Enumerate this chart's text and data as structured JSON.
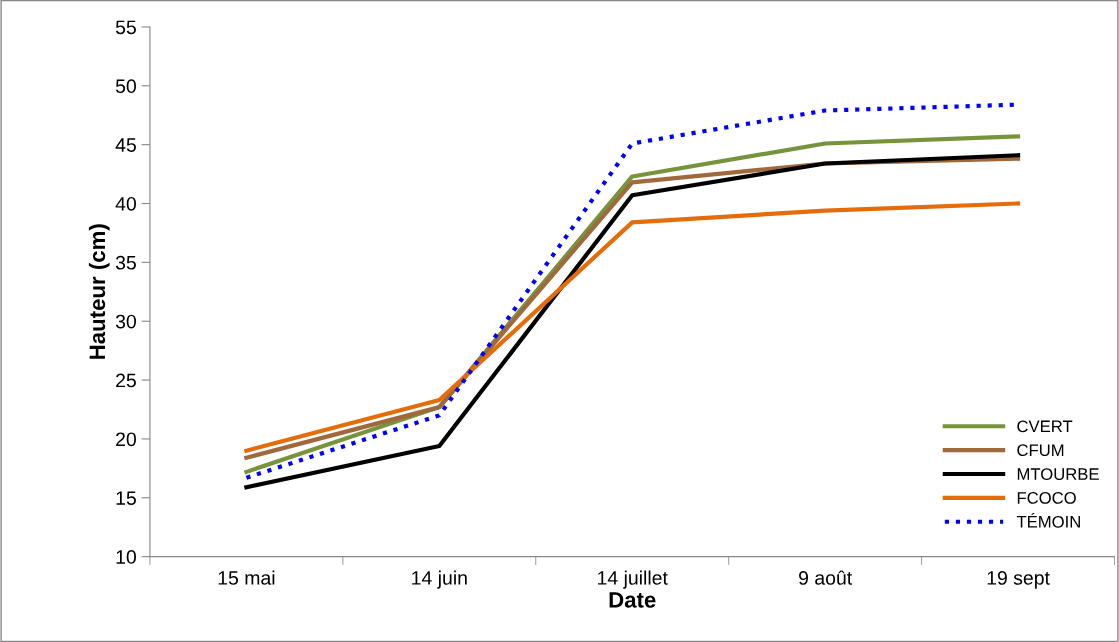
{
  "chart_data": {
    "type": "line",
    "xlabel": "Date",
    "ylabel": "Hauteur (cm)",
    "categories": [
      "15 mai",
      "14 juin",
      "14 juillet",
      "9 août",
      "19 sept"
    ],
    "series": [
      {
        "name": "CVERT",
        "color": "#77933c",
        "values": [
          17.2,
          22.7,
          42.3,
          45.1,
          45.7
        ]
      },
      {
        "name": "CFUM",
        "color": "#a0693c",
        "values": [
          18.4,
          22.7,
          41.8,
          43.4,
          43.8
        ]
      },
      {
        "name": "MTOURBE",
        "color": "#000000",
        "values": [
          15.9,
          19.4,
          40.7,
          43.4,
          44.1
        ]
      },
      {
        "name": "FCOCO",
        "color": "#e46c0a",
        "values": [
          19.0,
          23.3,
          38.4,
          39.4,
          40.0
        ]
      },
      {
        "name": "TÉMOIN",
        "color": "#0000ff",
        "values": [
          16.7,
          22.0,
          45.1,
          47.9,
          48.4
        ],
        "line_style": "dotted"
      }
    ],
    "ylim": [
      10,
      55
    ],
    "yticks": [
      10,
      15,
      20,
      25,
      30,
      35,
      40,
      45,
      50,
      55
    ],
    "grid": false,
    "legend": "bottom right",
    "marker": "none",
    "line_style": "solid"
  }
}
